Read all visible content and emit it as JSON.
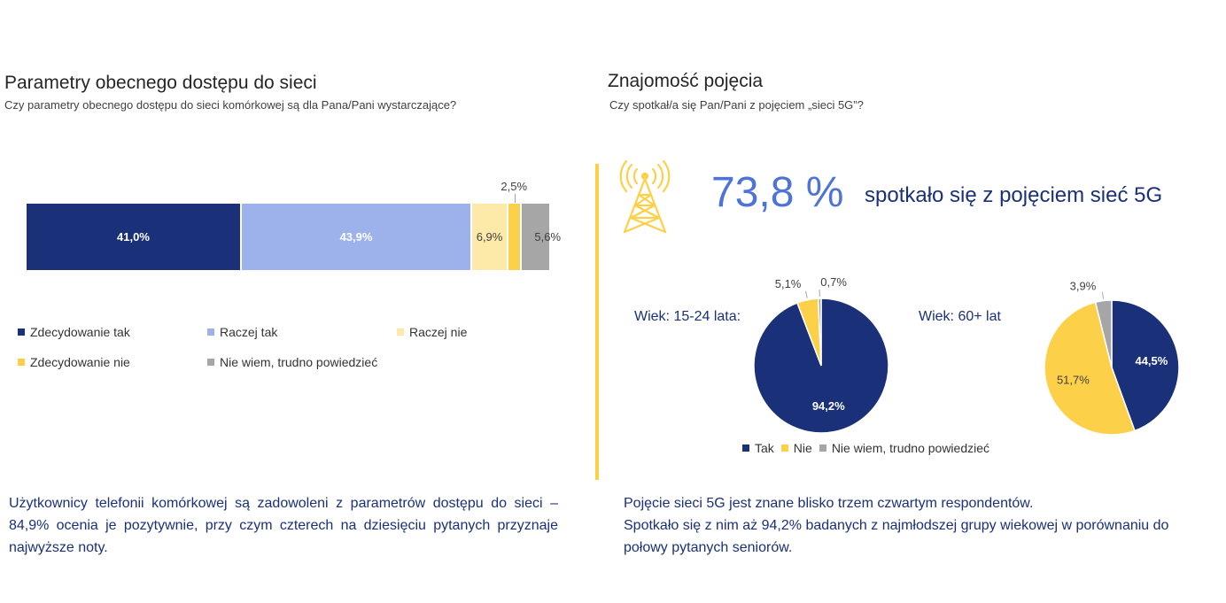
{
  "left": {
    "title": "Parametry obecnego dostępu do sieci",
    "subtitle": "Czy parametry obecnego dostępu do sieci komórkowej są dla Pana/Pani wystarczające?",
    "note": "Użytkownicy telefonii komórkowej są zadowoleni z parametrów dostępu do sieci – 84,9% ocenia je pozytywnie, przy czym czterech na dziesięciu pytanych przyznaje najwyższe noty."
  },
  "right": {
    "title": "Znajomość pojęcia",
    "subtitle": "Czy spotkał/a się Pan/Pani z pojęciem „sieci 5G”?",
    "big_percent": "73,8 %",
    "big_text": "spotkało się z pojęciem sieć 5G",
    "icon": "signal-tower-icon",
    "note_line1": "Pojęcie sieci 5G jest znane blisko trzem czwartym respondentów.",
    "note_line2": "Spotkało się z nim aż 94,2% badanych z najmłodszej grupy wiekowej w porównaniu do połowy pytanych seniorów."
  },
  "chart_data": [
    {
      "type": "bar",
      "orientation": "horizontal-stacked-100",
      "series": [
        {
          "name": "Zdecydowanie tak",
          "values": [
            41.0
          ],
          "label": "41,0%",
          "color": "#1a3079"
        },
        {
          "name": "Raczej tak",
          "values": [
            43.9
          ],
          "label": "43,9%",
          "color": "#9db1ea"
        },
        {
          "name": "Raczej nie",
          "values": [
            6.9
          ],
          "label": "6,9%",
          "color": "#fde9a8"
        },
        {
          "name": "Zdecydowanie nie",
          "values": [
            2.5
          ],
          "label": "2,5%",
          "color": "#fdd04a"
        },
        {
          "name": "Nie wiem, trudno powiedzieć",
          "values": [
            5.6
          ],
          "label": "5,6%",
          "color": "#a6a6a6"
        }
      ],
      "legend_position": "bottom"
    },
    {
      "type": "pie",
      "label": "Wiek: 15-24 lata:",
      "slices": [
        {
          "name": "Tak",
          "value": 94.2,
          "label": "94,2%",
          "color": "#1a3079"
        },
        {
          "name": "Nie",
          "value": 5.1,
          "label": "5,1%",
          "color": "#fdd04a"
        },
        {
          "name": "Nie wiem, trudno powiedzieć",
          "value": 0.7,
          "label": "0,7%",
          "color": "#a6a6a6"
        }
      ]
    },
    {
      "type": "pie",
      "label": "Wiek: 60+ lat",
      "slices": [
        {
          "name": "Tak",
          "value": 44.5,
          "label": "44,5%",
          "color": "#1a3079"
        },
        {
          "name": "Nie",
          "value": 51.7,
          "label": "51,7%",
          "color": "#fdd04a"
        },
        {
          "name": "Nie wiem, trudno powiedzieć",
          "value": 3.9,
          "label": "3,9%",
          "color": "#a6a6a6"
        }
      ]
    }
  ],
  "pie_legend": [
    {
      "name": "Tak",
      "color": "#1a3079"
    },
    {
      "name": "Nie",
      "color": "#fdd04a"
    },
    {
      "name": "Nie wiem, trudno powiedzieć",
      "color": "#a6a6a6"
    }
  ]
}
